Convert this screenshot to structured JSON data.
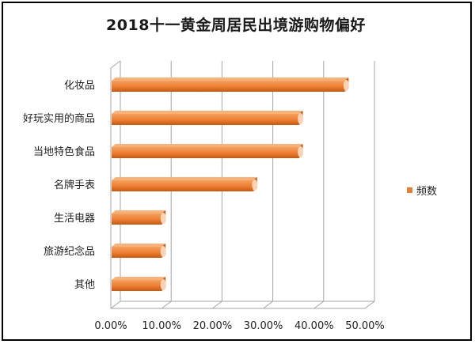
{
  "chart_data": {
    "type": "bar",
    "orientation": "horizontal",
    "title": "2018十一黄金周居民出境游购物偏好",
    "categories": [
      "化妆品",
      "好玩实用的商品",
      "当地特色食品",
      "名牌手表",
      "生活电器",
      "旅游纪念品",
      "其他"
    ],
    "series": [
      {
        "name": "频数",
        "values": [
          46,
          37,
          37,
          28,
          10,
          10,
          10
        ]
      }
    ],
    "xlim": [
      0,
      50
    ],
    "x_ticks": [
      "0.00%",
      "10.00%",
      "20.00%",
      "30.00%",
      "40.00%",
      "50.00%"
    ],
    "grid": true,
    "legend": "right",
    "colors": {
      "bar": "#ed7d31",
      "bar_dark": "#c55a11",
      "grid": "#a6a6a6",
      "axis": "#a6a6a6"
    }
  }
}
